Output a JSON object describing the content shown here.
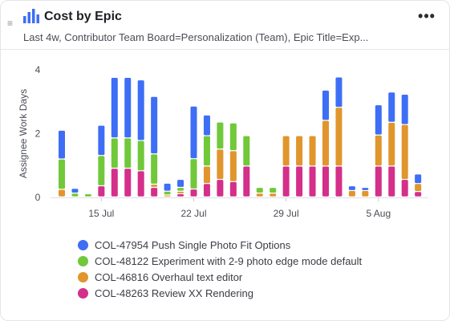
{
  "widget": {
    "title": "Cost by Epic",
    "subtitle": "Last 4w, Contributor Team Board=Personalization (Team), Epic Title=Exp...",
    "menu_label": "•••",
    "drag_handle": "≡",
    "icon": "bar-chart-icon",
    "accent_color": "#3d6ef5"
  },
  "chart_data": {
    "type": "bar",
    "stacked": true,
    "ylabel": "Assignee Work Days",
    "ylim": [
      0,
      4
    ],
    "yticks": [
      0,
      2,
      4
    ],
    "xtick_labels": [
      "15 Jul",
      "22 Jul",
      "29 Jul",
      "5 Aug"
    ],
    "xtick_at_bar": [
      3,
      10,
      17,
      24
    ],
    "grid": false,
    "legend_position": "bottom",
    "series": [
      {
        "name": "COL-48263 Review XX Rendering",
        "color": "#d42f8a",
        "values": [
          0,
          0,
          0,
          0.35,
          0.9,
          0.9,
          0.82,
          0.3,
          0,
          0.1,
          0.25,
          0.42,
          0.55,
          0.48,
          0.97,
          0,
          0,
          0.97,
          0.97,
          0.97,
          0.97,
          0.97,
          0,
          0,
          0.97,
          0.97,
          0.55,
          0.17
        ]
      },
      {
        "name": "COL-46816 Overhaul text editor",
        "color": "#e0962c",
        "values": [
          0.24,
          0,
          0,
          0,
          0,
          0,
          0,
          0.1,
          0.06,
          0.08,
          0,
          0.55,
          0.95,
          0.97,
          0,
          0.12,
          0.12,
          0.95,
          0.95,
          0.95,
          1.43,
          1.84,
          0.2,
          0.2,
          0.97,
          1.37,
          1.72,
          0.25
        ]
      },
      {
        "name": "COL-48122 Experiment with 2-9 photo edge mode default",
        "color": "#71c83a",
        "values": [
          0.95,
          0.12,
          0.1,
          0.95,
          0.95,
          0.95,
          0.95,
          0.95,
          0.12,
          0.12,
          0.95,
          0.95,
          0.85,
          0.87,
          0.95,
          0.18,
          0.18,
          0,
          0,
          0,
          0,
          0,
          0,
          0,
          0,
          0,
          0,
          0
        ]
      },
      {
        "name": "COL-47954 Push Single Photo Fit Options",
        "color": "#3d6ef5",
        "values": [
          0.9,
          0.15,
          0,
          0.95,
          1.9,
          1.9,
          1.9,
          1.8,
          0.25,
          0.25,
          1.65,
          0.65,
          0,
          0,
          0,
          0,
          0,
          0,
          0,
          0,
          0.95,
          0.95,
          0.15,
          0.1,
          0.95,
          0.95,
          0.95,
          0.3
        ]
      }
    ]
  },
  "legend": {
    "items": [
      {
        "label": "COL-47954 Push Single Photo Fit Options",
        "color": "#3d6ef5"
      },
      {
        "label": "COL-48122 Experiment with 2-9 photo edge mode default",
        "color": "#71c83a"
      },
      {
        "label": "COL-46816 Overhaul text editor",
        "color": "#e0962c"
      },
      {
        "label": "COL-48263 Review XX Rendering",
        "color": "#d42f8a"
      }
    ]
  }
}
